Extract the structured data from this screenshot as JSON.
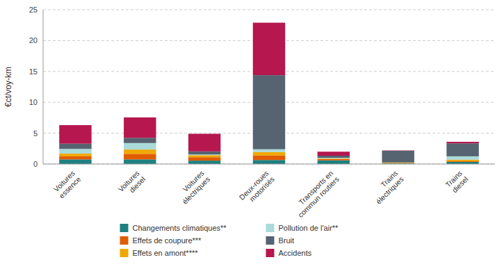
{
  "chart_data": {
    "type": "bar",
    "stacked": true,
    "ylabel": "€ct/voy-km",
    "categories": [
      "Voitures\nessence",
      "Voitures\ndiesel",
      "Voitures\nélectriques",
      "Deux-roues\nmotorisés",
      "Transports en\ncommun routiers",
      "Trains\nélectriques",
      "Trains\ndiesel"
    ],
    "series": [
      {
        "name": "Changements climatiques**",
        "color": "#1e8080",
        "values": [
          0.75,
          0.75,
          0.55,
          0.65,
          0.6,
          0.1,
          0.35
        ]
      },
      {
        "name": "Effets de coupure***",
        "color": "#e05c00",
        "values": [
          0.5,
          0.9,
          0.55,
          0.75,
          0.2,
          0.05,
          0.1
        ]
      },
      {
        "name": "Effets en amont****",
        "color": "#f0a800",
        "values": [
          0.45,
          0.7,
          0.33,
          0.55,
          0.08,
          0.1,
          0.25
        ]
      },
      {
        "name": "Pollution de l'air**",
        "color": "#aadada",
        "values": [
          0.75,
          1.05,
          0.12,
          0.45,
          0.12,
          0.0,
          0.55
        ]
      },
      {
        "name": "Bruit",
        "color": "#566370",
        "values": [
          0.85,
          0.85,
          0.5,
          12.0,
          0.35,
          1.9,
          2.1
        ]
      },
      {
        "name": "Accidents",
        "color": "#b5174e",
        "values": [
          3.0,
          3.3,
          2.85,
          8.5,
          0.65,
          0.05,
          0.25
        ]
      }
    ],
    "ylim": [
      0,
      25
    ],
    "yticks": [
      0,
      5,
      10,
      15,
      20,
      25
    ],
    "grid": true,
    "legend": "bottom"
  }
}
